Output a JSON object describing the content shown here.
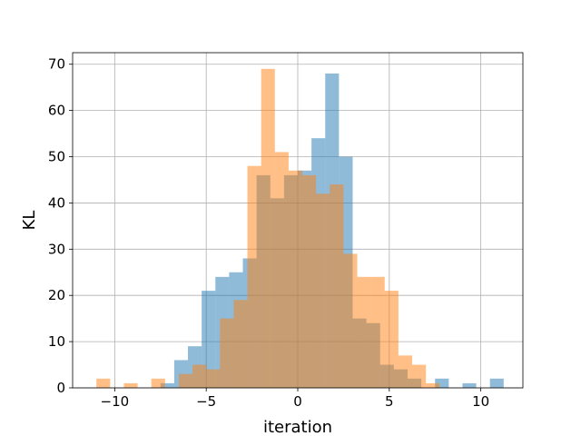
{
  "chart_data": {
    "type": "bar",
    "subtype": "overlapping-histogram",
    "title": "",
    "xlabel": "iteration",
    "ylabel": "KL",
    "xlim": [
      -12.3,
      12.3
    ],
    "ylim": [
      0,
      72.5
    ],
    "xticks": [
      -10,
      -5,
      0,
      5,
      10
    ],
    "xtick_labels": [
      "−10",
      "−5",
      "0",
      "5",
      "10"
    ],
    "yticks": [
      0,
      10,
      20,
      30,
      40,
      50,
      60,
      70
    ],
    "ytick_labels": [
      "0",
      "10",
      "20",
      "30",
      "40",
      "50",
      "60",
      "70"
    ],
    "grid": true,
    "legend": false,
    "series": [
      {
        "color": "#1f77b4",
        "opacity": 0.5,
        "bins": [
          {
            "x0": -7.5,
            "x1": -6.75,
            "count": 1
          },
          {
            "x0": -6.75,
            "x1": -6.0,
            "count": 6
          },
          {
            "x0": -6.0,
            "x1": -5.25,
            "count": 9
          },
          {
            "x0": -5.25,
            "x1": -4.5,
            "count": 21
          },
          {
            "x0": -4.5,
            "x1": -3.75,
            "count": 24
          },
          {
            "x0": -3.75,
            "x1": -3.0,
            "count": 25
          },
          {
            "x0": -3.0,
            "x1": -2.25,
            "count": 28
          },
          {
            "x0": -2.25,
            "x1": -1.5,
            "count": 46
          },
          {
            "x0": -1.5,
            "x1": -0.75,
            "count": 41
          },
          {
            "x0": -0.75,
            "x1": 0.0,
            "count": 46
          },
          {
            "x0": 0.0,
            "x1": 0.75,
            "count": 47
          },
          {
            "x0": 0.75,
            "x1": 1.5,
            "count": 54
          },
          {
            "x0": 1.5,
            "x1": 2.25,
            "count": 68
          },
          {
            "x0": 2.25,
            "x1": 3.0,
            "count": 50
          },
          {
            "x0": 3.0,
            "x1": 3.75,
            "count": 15
          },
          {
            "x0": 3.75,
            "x1": 4.5,
            "count": 14
          },
          {
            "x0": 4.5,
            "x1": 5.25,
            "count": 5
          },
          {
            "x0": 5.25,
            "x1": 6.0,
            "count": 4
          },
          {
            "x0": 6.0,
            "x1": 6.75,
            "count": 2
          },
          {
            "x0": 7.5,
            "x1": 8.25,
            "count": 2
          },
          {
            "x0": 9.0,
            "x1": 9.75,
            "count": 1
          },
          {
            "x0": 10.5,
            "x1": 11.25,
            "count": 2
          }
        ]
      },
      {
        "color": "#ff7f0e",
        "opacity": 0.5,
        "bins": [
          {
            "x0": -11.0,
            "x1": -10.25,
            "count": 2
          },
          {
            "x0": -9.5,
            "x1": -8.75,
            "count": 1
          },
          {
            "x0": -8.0,
            "x1": -7.25,
            "count": 2
          },
          {
            "x0": -6.5,
            "x1": -5.75,
            "count": 3
          },
          {
            "x0": -5.75,
            "x1": -5.0,
            "count": 5
          },
          {
            "x0": -5.0,
            "x1": -4.25,
            "count": 4
          },
          {
            "x0": -4.25,
            "x1": -3.5,
            "count": 15
          },
          {
            "x0": -3.5,
            "x1": -2.75,
            "count": 19
          },
          {
            "x0": -2.75,
            "x1": -2.0,
            "count": 48
          },
          {
            "x0": -2.0,
            "x1": -1.25,
            "count": 69
          },
          {
            "x0": -1.25,
            "x1": -0.5,
            "count": 51
          },
          {
            "x0": -0.5,
            "x1": 0.25,
            "count": 47
          },
          {
            "x0": 0.25,
            "x1": 1.0,
            "count": 46
          },
          {
            "x0": 1.0,
            "x1": 1.75,
            "count": 42
          },
          {
            "x0": 1.75,
            "x1": 2.5,
            "count": 44
          },
          {
            "x0": 2.5,
            "x1": 3.25,
            "count": 29
          },
          {
            "x0": 3.25,
            "x1": 4.0,
            "count": 24
          },
          {
            "x0": 4.0,
            "x1": 4.75,
            "count": 24
          },
          {
            "x0": 4.75,
            "x1": 5.5,
            "count": 21
          },
          {
            "x0": 5.5,
            "x1": 6.25,
            "count": 7
          },
          {
            "x0": 6.25,
            "x1": 7.0,
            "count": 5
          },
          {
            "x0": 7.0,
            "x1": 7.75,
            "count": 1
          }
        ]
      }
    ]
  }
}
